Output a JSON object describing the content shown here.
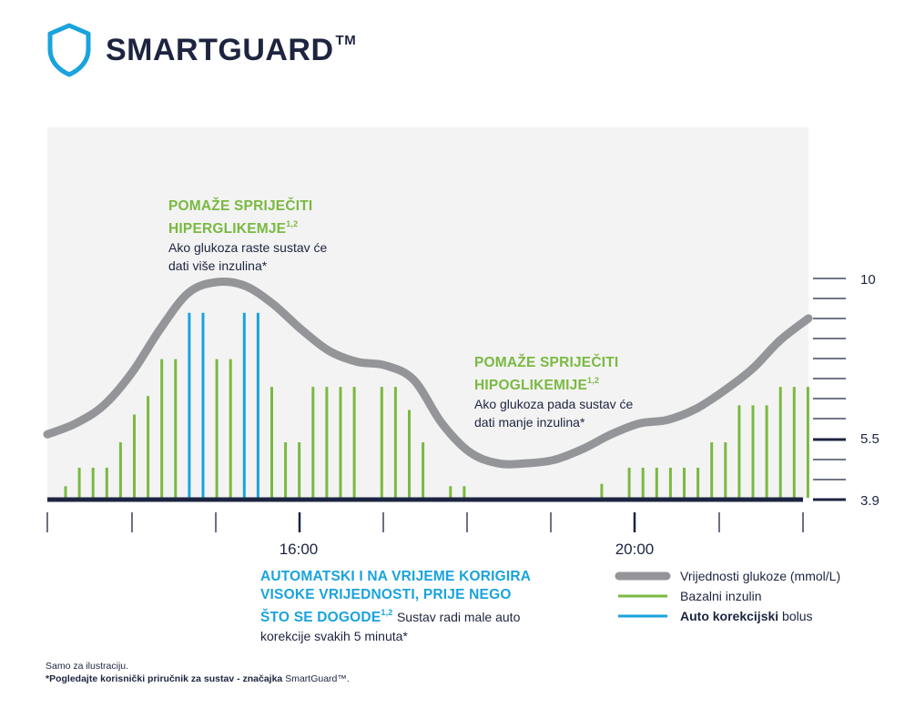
{
  "logo": {
    "text": "SMARTGUARD",
    "tm": "TM"
  },
  "chart_data": {
    "type": "line",
    "x_ticks": [
      "16:00",
      "20:00"
    ],
    "y_ticks": [
      "10",
      "5.5",
      "3.9"
    ],
    "glucose": {
      "name": "Vrijednosti glukoze (mmol/L)",
      "color": "#939598",
      "points": [
        [
          0,
          5.7
        ],
        [
          0.5,
          6.0
        ],
        [
          1,
          6.5
        ],
        [
          1.5,
          7.4
        ],
        [
          2,
          8.6
        ],
        [
          2.5,
          9.6
        ],
        [
          3,
          9.9
        ],
        [
          3.5,
          9.8
        ],
        [
          4,
          9.3
        ],
        [
          4.5,
          8.6
        ],
        [
          5,
          8.0
        ],
        [
          5.5,
          7.7
        ],
        [
          6,
          7.6
        ],
        [
          6.5,
          7.2
        ],
        [
          7,
          6.0
        ],
        [
          7.5,
          5.2
        ],
        [
          8,
          4.9
        ],
        [
          8.5,
          4.9
        ],
        [
          9,
          5.0
        ],
        [
          9.5,
          5.3
        ],
        [
          10,
          5.7
        ],
        [
          10.5,
          6.0
        ],
        [
          11,
          6.1
        ],
        [
          11.5,
          6.4
        ],
        [
          12,
          6.9
        ],
        [
          12.5,
          7.5
        ],
        [
          13,
          8.3
        ],
        [
          13.5,
          8.9
        ]
      ]
    },
    "basal": {
      "name": "Bazalni inzulin",
      "color": "#7ab941",
      "values": [
        0.25,
        0.65,
        0.65,
        0.65,
        1.2,
        1.8,
        2.2,
        3.0,
        3.0,
        0,
        0,
        3.0,
        3.0,
        0,
        0,
        2.4,
        1.2,
        1.2,
        2.4,
        2.4,
        2.4,
        2.4,
        0,
        2.4,
        2.4,
        1.9,
        1.2,
        0,
        0.25,
        0.25,
        0,
        0,
        0,
        0,
        0,
        0,
        0,
        0,
        0,
        0.3,
        0,
        0.65,
        0.65,
        0.65,
        0.65,
        0.65,
        0.65,
        1.2,
        1.2,
        2.0,
        2.0,
        2.0,
        2.4,
        2.4,
        2.4
      ]
    },
    "bolus": {
      "name": "Auto korekcijski bolus",
      "color": "#1aa3dd",
      "values": [
        0,
        0,
        0,
        0,
        0,
        0,
        0,
        0,
        0,
        4.0,
        4.0,
        0,
        0,
        4.0,
        4.0,
        0,
        0,
        0,
        0,
        0,
        0,
        0,
        0,
        0,
        0,
        0,
        0,
        0,
        0,
        0,
        0,
        0,
        0,
        0,
        0,
        0,
        0,
        0,
        0,
        0,
        0,
        0,
        0,
        0,
        0,
        0,
        0,
        0,
        0,
        0,
        0,
        0,
        0,
        0,
        0
      ]
    }
  },
  "annotations": {
    "hyper": {
      "title_line1": "POMAŽE SPRIJEČITI",
      "title_line2": "HIPERGLIKEMJE",
      "sup": "1,2",
      "body1": "Ako glukoza raste sustav će",
      "body2": "dati više inzulina*"
    },
    "hypo": {
      "title_line1": "POMAŽE SPRIJEČITI",
      "title_line2": "HIPOGLIKEMIJE",
      "sup": "1,2",
      "body1": "Ako glukoza pada sustav će",
      "body2": "dati manje inzulina*"
    },
    "auto": {
      "line1": "AUTOMATSKI I NA VRIJEME KORIGIRA",
      "line2": "VISOKE VRIJEDNOSTI, PRIJE NEGO",
      "line3": "ŠTO SE DOGODE",
      "sup": "1,2",
      "body_inline": "Sustav radi male auto",
      "body2": "korekcije svakih 5 minuta*"
    }
  },
  "legend": {
    "glucose": "Vrijednosti glukoze  (mmol/L)",
    "basal": "Bazalni inzulin",
    "bolus_bold": "Auto korekcijski",
    "bolus_rest": " bolus"
  },
  "footnote": {
    "line1": "Samo za ilustraciju.",
    "line2_bold": "*Pogledajte korisnički priručnik za sustav - značajka",
    "line2_rest": " SmartGuard™."
  }
}
